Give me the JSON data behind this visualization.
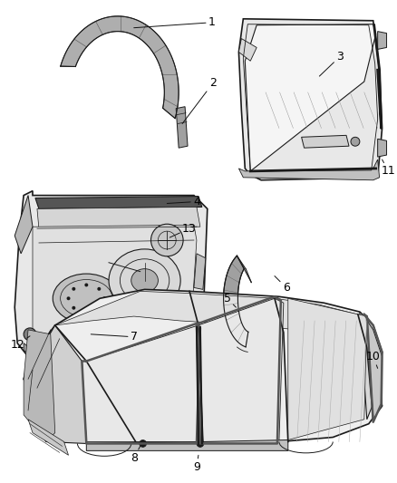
{
  "background_color": "#ffffff",
  "line_color": "#1a1a1a",
  "fig_width": 4.38,
  "fig_height": 5.33,
  "dpi": 100,
  "label_fontsize": 9,
  "leader_color": "#111111",
  "gray_fill": "#c8c8c8",
  "light_gray": "#e8e8e8",
  "mid_gray": "#a0a0a0"
}
